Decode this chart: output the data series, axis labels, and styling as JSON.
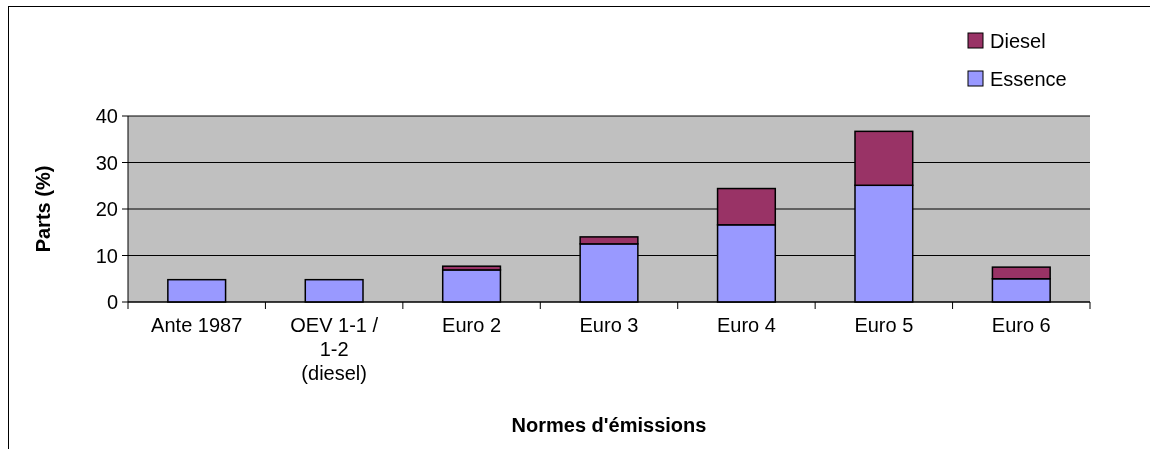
{
  "chart_data": {
    "type": "bar",
    "stacked": true,
    "xlabel": "Normes d'émissions",
    "ylabel": "Parts (%)",
    "categories": [
      "Ante 1987",
      "OEV 1-1 / 1-2 (diesel)",
      "Euro 2",
      "Euro 3",
      "Euro 4",
      "Euro 5",
      "Euro 6"
    ],
    "series": [
      {
        "name": "Essence",
        "color": "#9999ff",
        "values": [
          4.8,
          4.8,
          6.9,
          12.5,
          16.6,
          25.1,
          5.0
        ]
      },
      {
        "name": "Diesel",
        "color": "#993366",
        "values": [
          0,
          0,
          0.8,
          1.5,
          7.8,
          11.6,
          2.5
        ]
      }
    ],
    "ylim": [
      0,
      40
    ],
    "yticks": [
      0,
      10,
      20,
      30,
      40
    ],
    "grid": "y",
    "legend": "top right"
  }
}
